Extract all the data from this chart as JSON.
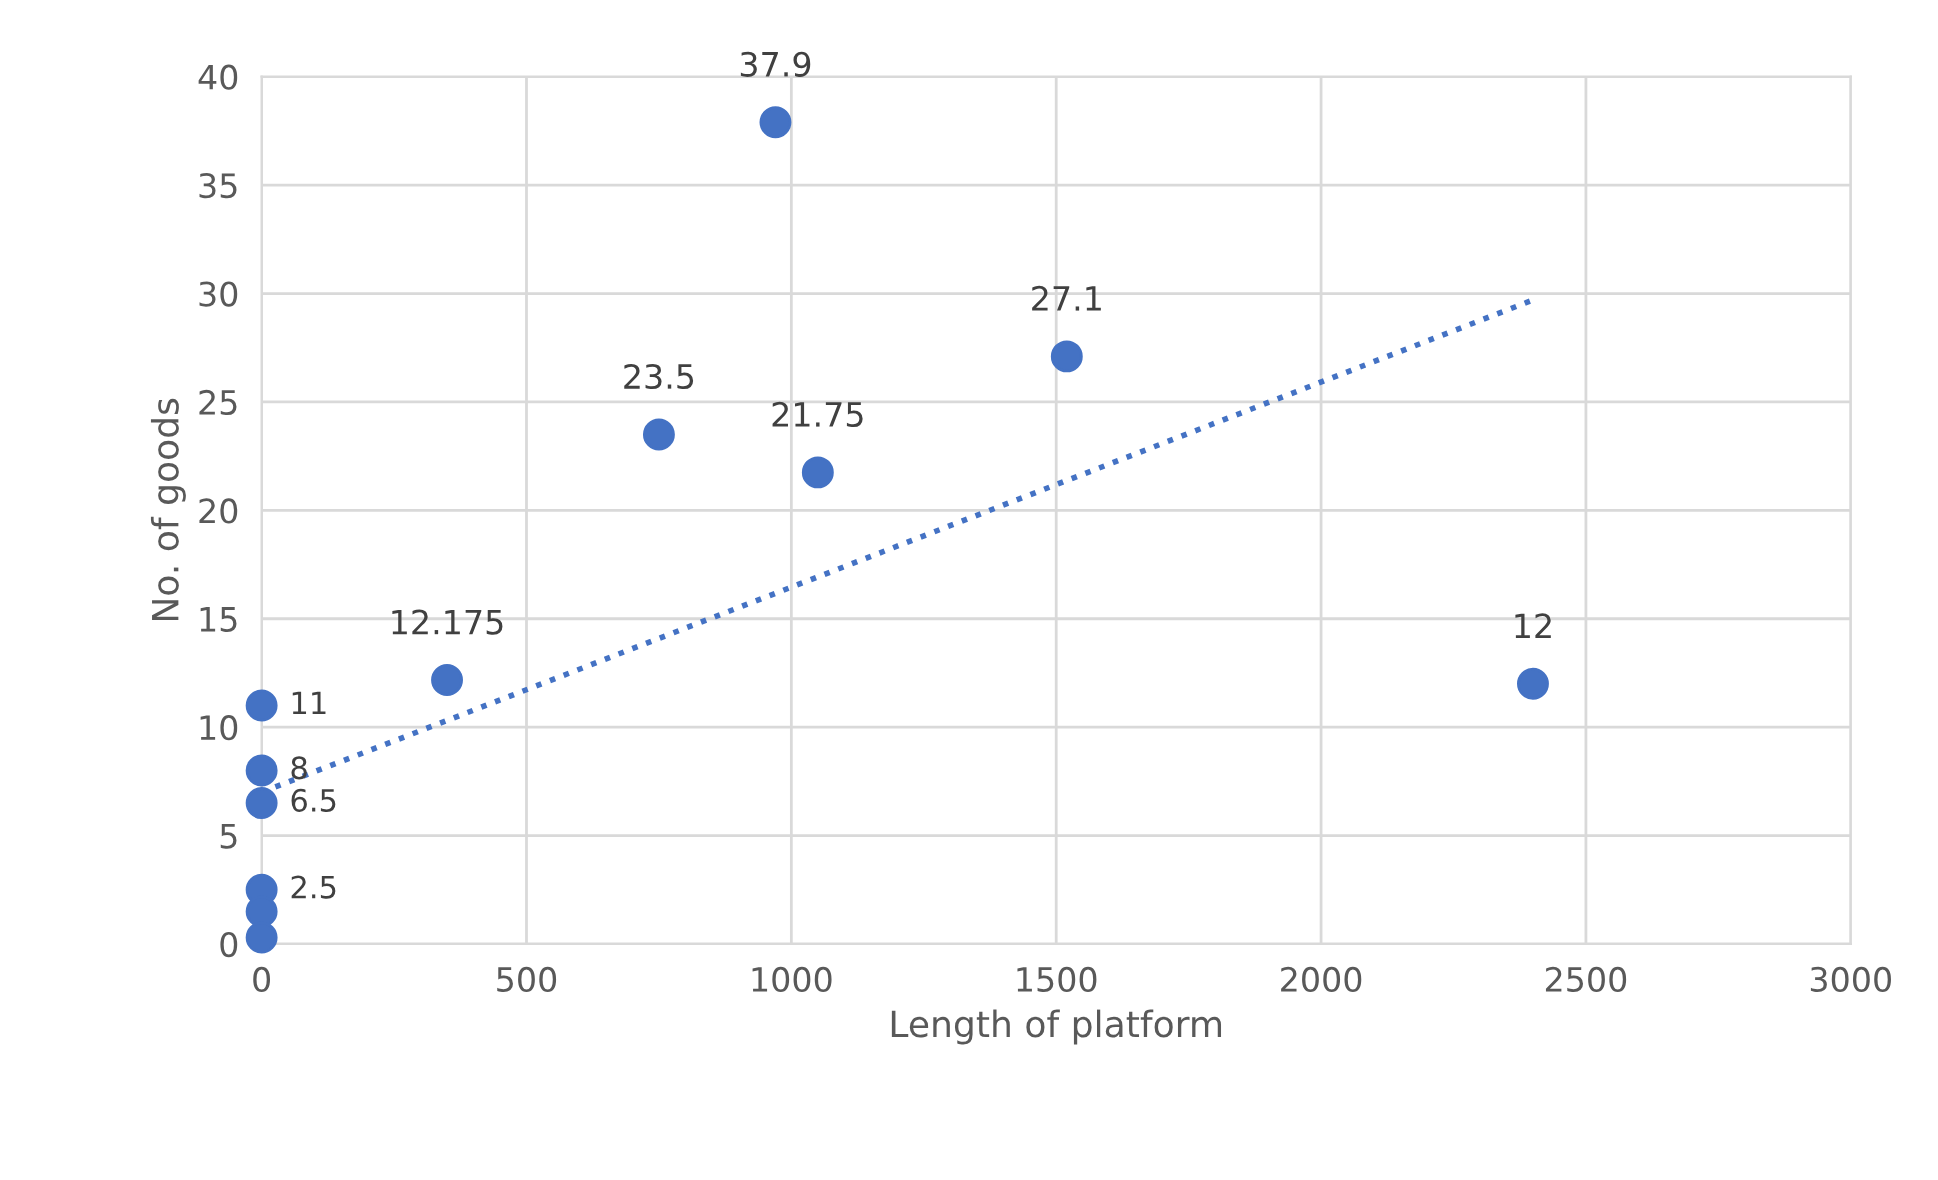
{
  "chart_data": {
    "type": "scatter",
    "xlabel": "Length of platform",
    "ylabel": "No. of goods",
    "xlim": [
      0,
      3000
    ],
    "xticks": [
      0,
      500,
      1000,
      1500,
      2000,
      2500,
      3000
    ],
    "ylim": [
      0,
      40
    ],
    "yticks": [
      0,
      5,
      10,
      15,
      20,
      25,
      30,
      35,
      40
    ],
    "grid": true,
    "series": [
      {
        "color": "#4472c4",
        "marker": "circle",
        "x": [
          0,
          0,
          0,
          0,
          0,
          0,
          350,
          750,
          970,
          1050,
          1520,
          2400
        ],
        "values": [
          11,
          8,
          6.5,
          2.5,
          1.5,
          0.3,
          12.175,
          23.5,
          37.9,
          21.75,
          27.1,
          12
        ],
        "value_labels": [
          "11",
          "8",
          "6.5",
          "2.5",
          null,
          null,
          "12.175",
          "23.5",
          "37.9",
          "21.75",
          "27.1",
          "12"
        ]
      },
      {
        "type": "line",
        "color": "#4472c4",
        "marker": "none",
        "line_style": "dotted",
        "x": [
          0,
          2400
        ],
        "values": [
          7.0,
          29.7
        ]
      }
    ]
  }
}
